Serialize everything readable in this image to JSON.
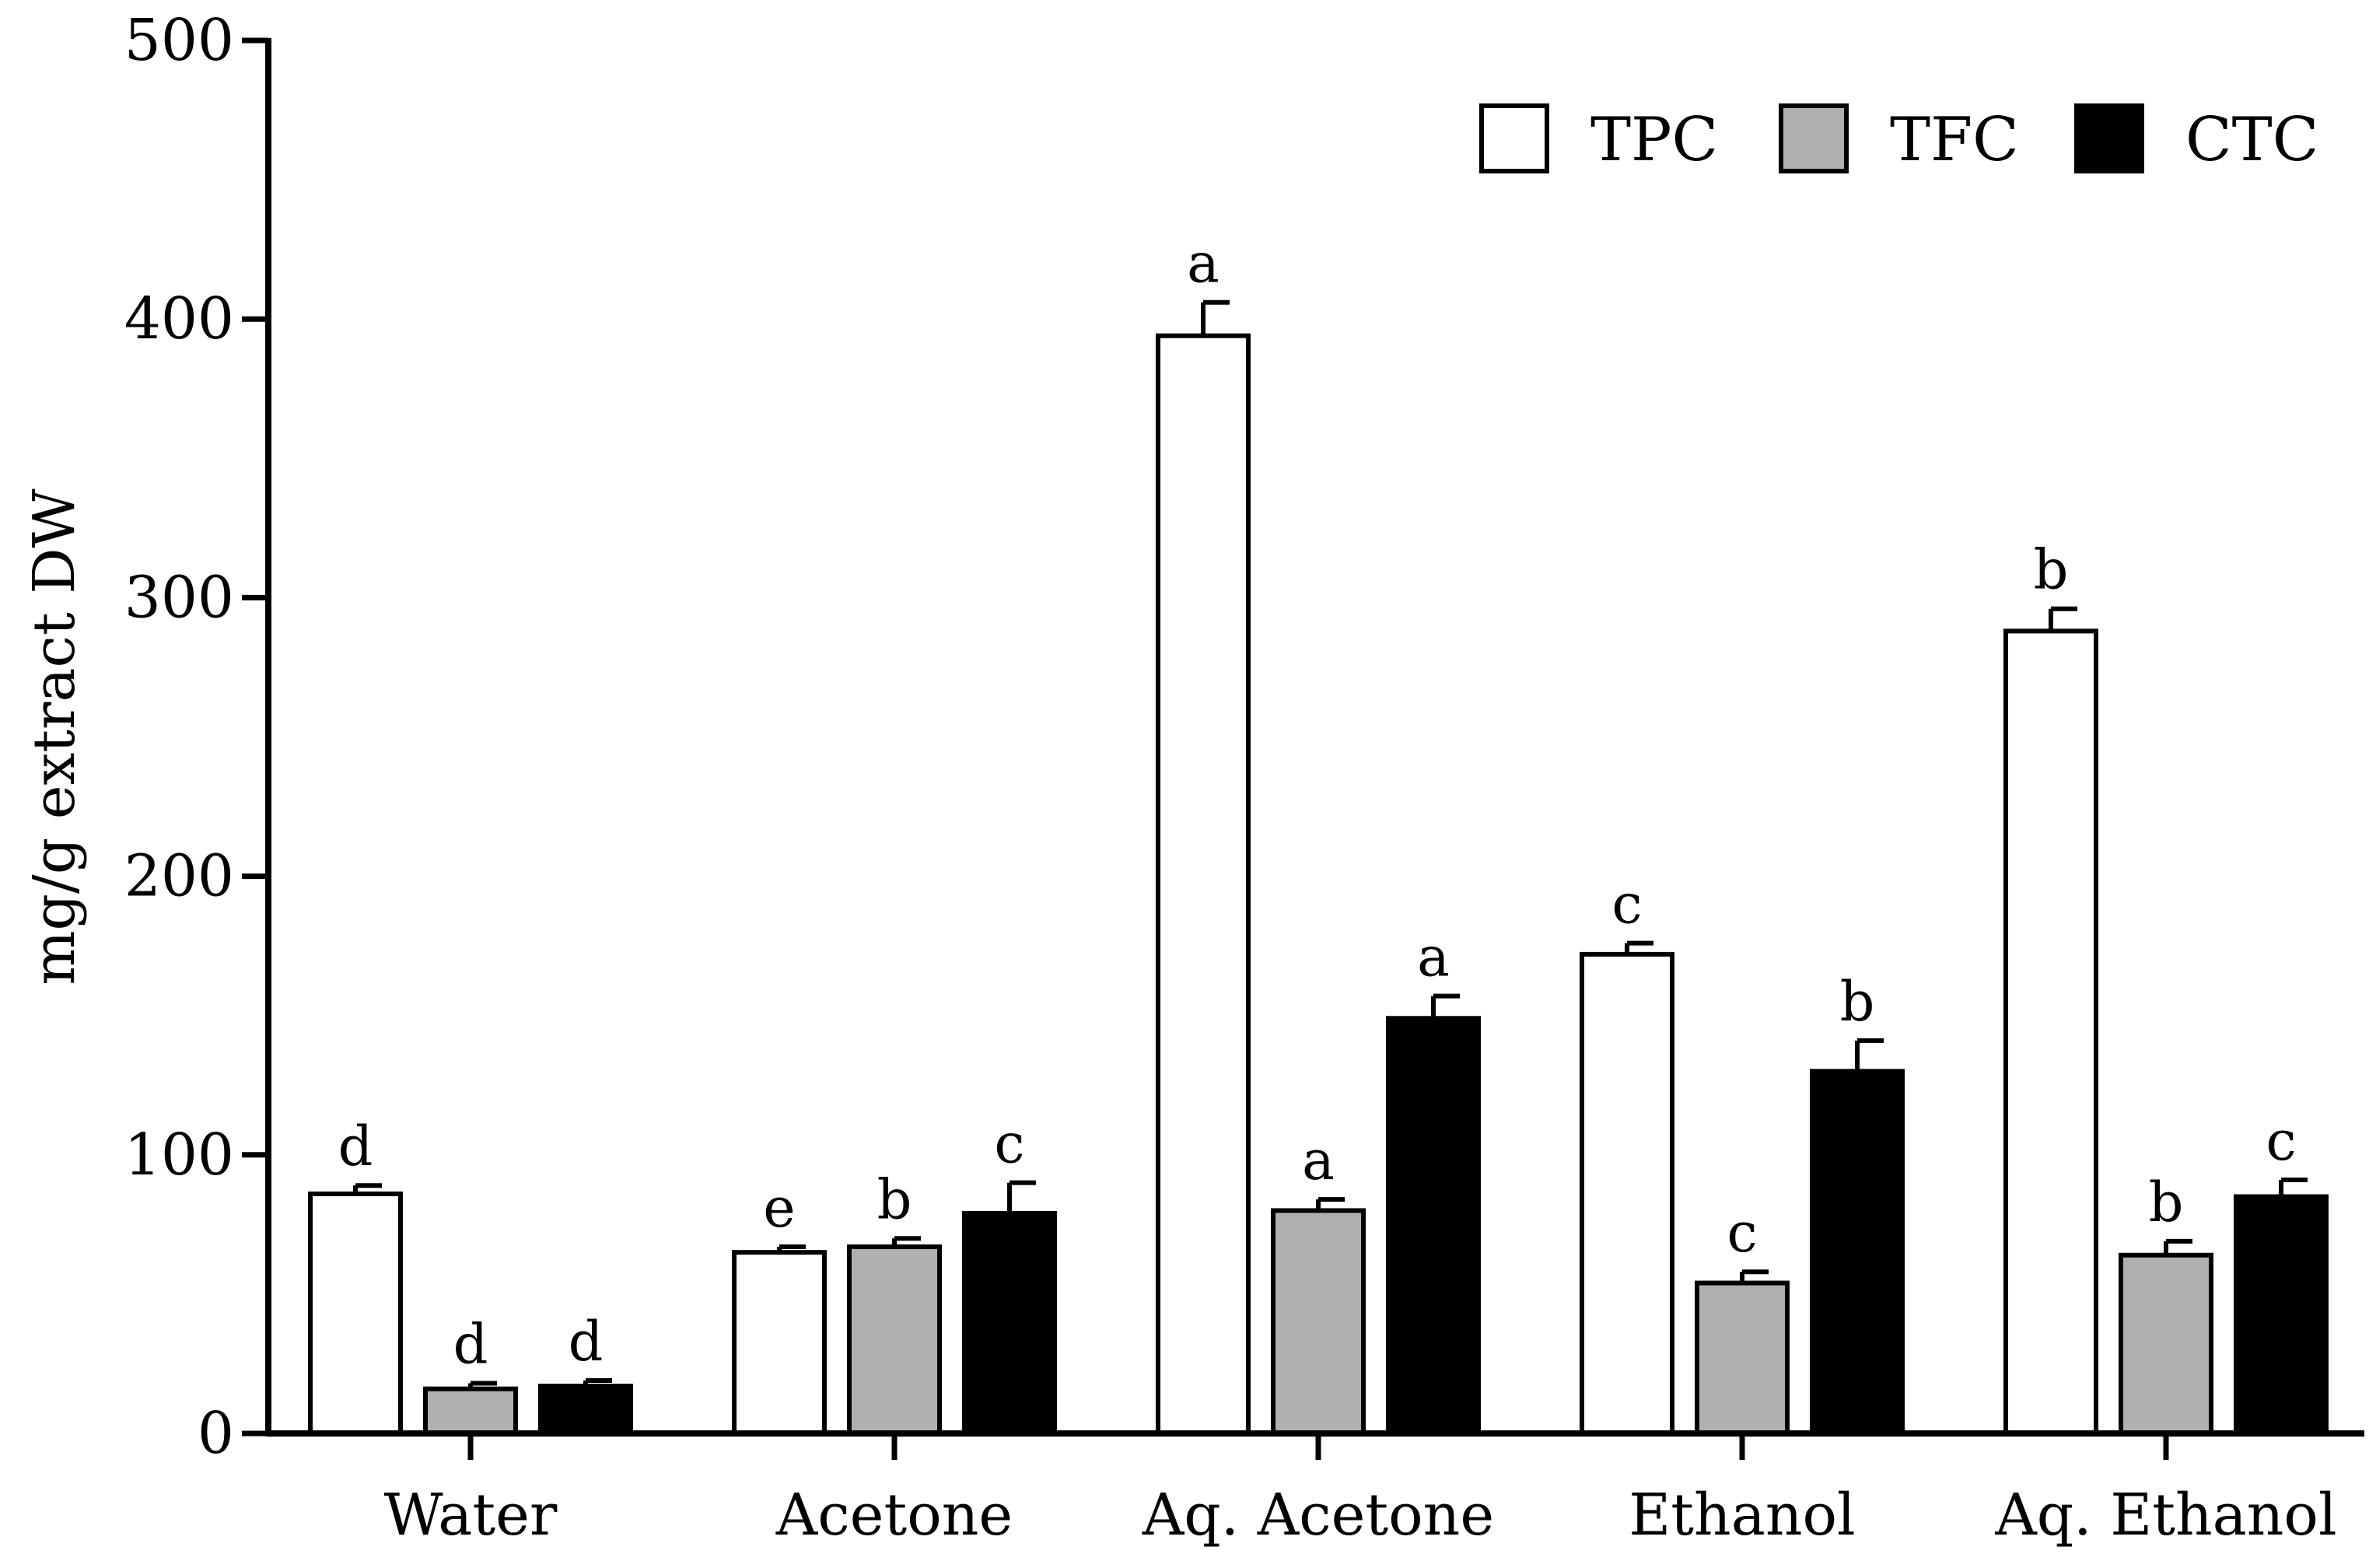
{
  "chart_data": {
    "type": "bar",
    "title": "",
    "xlabel": "",
    "ylabel": "mg/g extract DW",
    "ylim": [
      0,
      500
    ],
    "yticks": [
      0,
      100,
      200,
      300,
      400,
      500
    ],
    "grid": false,
    "legend_position": "top-right",
    "categories": [
      "Water",
      "Acetone",
      "Aq. Acetone",
      "Ethanol",
      "Aq. Ethanol"
    ],
    "series": [
      {
        "name": "TPC",
        "color": "#ffffff",
        "values": [
          86,
          65,
          394,
          172,
          288
        ],
        "errors": [
          3,
          2,
          12,
          4,
          8
        ],
        "letters": [
          "d",
          "e",
          "a",
          "c",
          "b"
        ]
      },
      {
        "name": "TFC",
        "color": "#b0b0b0",
        "values": [
          16,
          67,
          80,
          54,
          64
        ],
        "errors": [
          2,
          3,
          4,
          4,
          5
        ],
        "letters": [
          "d",
          "b",
          "a",
          "c",
          "b"
        ]
      },
      {
        "name": "CTC",
        "color": "#000000",
        "values": [
          17,
          79,
          149,
          130,
          85
        ],
        "errors": [
          2,
          11,
          8,
          11,
          6
        ],
        "letters": [
          "d",
          "c",
          "a",
          "b",
          "c"
        ]
      }
    ]
  }
}
